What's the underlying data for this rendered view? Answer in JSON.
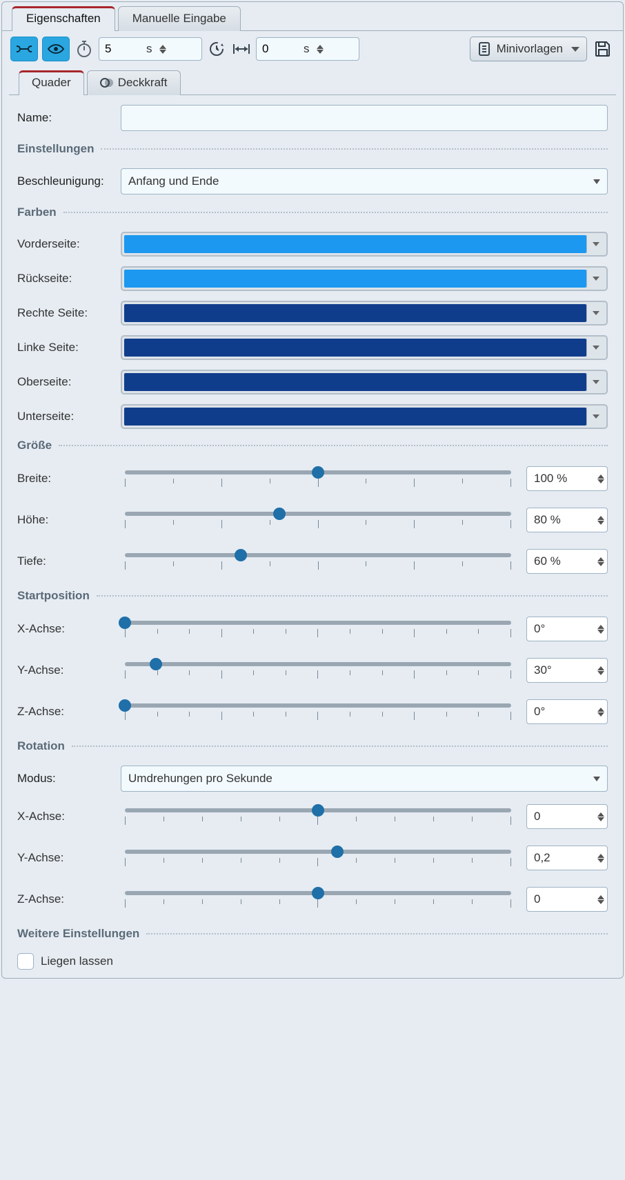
{
  "tabs": {
    "properties": "Eigenschaften",
    "manual": "Manuelle Eingabe"
  },
  "toolbar": {
    "duration_value": "5",
    "duration_unit": "s",
    "offset_value": "0",
    "offset_unit": "s",
    "mini_label": "Minivorlagen"
  },
  "subtabs": {
    "cuboid": "Quader",
    "opacity": "Deckkraft"
  },
  "labels": {
    "name": "Name:",
    "settings": "Einstellungen",
    "accel": "Beschleunigung:",
    "colors": "Farben",
    "front": "Vorderseite:",
    "back": "Rückseite:",
    "right": "Rechte Seite:",
    "left": "Linke Seite:",
    "top": "Oberseite:",
    "bottom": "Unterseite:",
    "size": "Größe",
    "width": "Breite:",
    "height": "Höhe:",
    "depth": "Tiefe:",
    "startpos": "Startposition",
    "xaxis": "X-Achse:",
    "yaxis": "Y-Achse:",
    "zaxis": "Z-Achse:",
    "rotation": "Rotation",
    "mode": "Modus:",
    "more": "Weitere Einstellungen",
    "lie": "Liegen lassen"
  },
  "values": {
    "name": "",
    "accel": "Anfang und Ende",
    "mode": "Umdrehungen pro Sekunde"
  },
  "colors": {
    "front": "#1c98f0",
    "back": "#1c98f0",
    "right": "#103d8b",
    "left": "#103d8b",
    "top": "#103d8b",
    "bottom": "#103d8b"
  },
  "sliders": {
    "size_ticks": {
      "major": 5,
      "minor_between": 1,
      "range": [
        0,
        200
      ]
    },
    "pos_ticks": {
      "major": 5,
      "minor_between": 2,
      "range": [
        0,
        360
      ]
    },
    "rot_ticks": {
      "major": 3,
      "minor_between": 4,
      "range": [
        -2,
        2
      ]
    },
    "width": {
      "value": "100 %",
      "pct": 50
    },
    "height": {
      "value": "80 %",
      "pct": 40
    },
    "depth": {
      "value": "60 %",
      "pct": 30
    },
    "sx": {
      "value": "0°",
      "pct": 0
    },
    "sy": {
      "value": "30°",
      "pct": 8
    },
    "sz": {
      "value": "0°",
      "pct": 0
    },
    "rx": {
      "value": "0",
      "pct": 50
    },
    "ry": {
      "value": "0,2",
      "pct": 55
    },
    "rz": {
      "value": "0",
      "pct": 50
    }
  },
  "theme": {
    "panel_bg": "#e6ecf2",
    "border": "#a0adb8",
    "accent_tab": "#a8252a",
    "icon_btn_bg": "#2aa6e0",
    "slider_thumb": "#1f6fa8",
    "slider_track": "#9aa7b3"
  }
}
